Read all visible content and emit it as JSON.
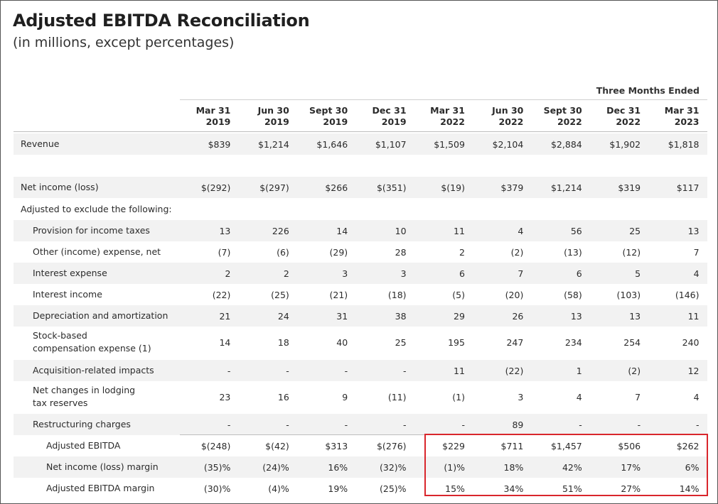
{
  "title": "Adjusted EBITDA Reconciliation",
  "subtitle": "(in millions, except percentages)",
  "period_label": "Three Months Ended",
  "columns": [
    {
      "month": "Mar 31",
      "year": "2019"
    },
    {
      "month": "Jun 30",
      "year": "2019"
    },
    {
      "month": "Sept 30",
      "year": "2019"
    },
    {
      "month": "Dec 31",
      "year": "2019"
    },
    {
      "month": "Mar 31",
      "year": "2022"
    },
    {
      "month": "Jun 30",
      "year": "2022"
    },
    {
      "month": "Sept 30",
      "year": "2022"
    },
    {
      "month": "Dec 31",
      "year": "2022"
    },
    {
      "month": "Mar 31",
      "year": "2023"
    }
  ],
  "rows": {
    "revenue": {
      "label": "Revenue",
      "values": [
        "$839",
        "$1,214",
        "$1,646",
        "$1,107",
        "$1,509",
        "$2,104",
        "$2,884",
        "$1,902",
        "$1,818"
      ]
    },
    "net_income": {
      "label": "Net income (loss)",
      "values": [
        "$(292)",
        "$(297)",
        "$266",
        "$(351)",
        "$(19)",
        "$379",
        "$1,214",
        "$319",
        "$117"
      ]
    },
    "adjusted_header": {
      "label": "Adjusted to exclude the following:"
    },
    "provision_taxes": {
      "label": "Provision for income taxes",
      "values": [
        "13",
        "226",
        "14",
        "10",
        "11",
        "4",
        "56",
        "25",
        "13"
      ]
    },
    "other_expense": {
      "label": "Other (income) expense, net",
      "values": [
        "(7)",
        "(6)",
        "(29)",
        "28",
        "2",
        "(2)",
        "(13)",
        "(12)",
        "7"
      ]
    },
    "interest_expense": {
      "label": "Interest expense",
      "values": [
        "2",
        "2",
        "3",
        "3",
        "6",
        "7",
        "6",
        "5",
        "4"
      ]
    },
    "interest_income": {
      "label": "Interest income",
      "values": [
        "(22)",
        "(25)",
        "(21)",
        "(18)",
        "(5)",
        "(20)",
        "(58)",
        "(103)",
        "(146)"
      ]
    },
    "depreciation": {
      "label": "Depreciation and amortization",
      "values": [
        "21",
        "24",
        "31",
        "38",
        "29",
        "26",
        "13",
        "13",
        "11"
      ]
    },
    "stock_comp": {
      "label_line1": "Stock-based",
      "label_line2": "compensation expense (1)",
      "values": [
        "14",
        "18",
        "40",
        "25",
        "195",
        "247",
        "234",
        "254",
        "240"
      ]
    },
    "acquisition": {
      "label": "Acquisition-related impacts",
      "values": [
        "-",
        "-",
        "-",
        "-",
        "11",
        "(22)",
        "1",
        "(2)",
        "12"
      ]
    },
    "lodging_tax": {
      "label_line1": "Net changes in lodging",
      "label_line2": "tax reserves",
      "values": [
        "23",
        "16",
        "9",
        "(11)",
        "(1)",
        "3",
        "4",
        "7",
        "4"
      ]
    },
    "restructuring": {
      "label": "Restructuring charges",
      "values": [
        "-",
        "-",
        "-",
        "-",
        "-",
        "89",
        "-",
        "-",
        "-"
      ]
    },
    "adjusted_ebitda": {
      "label": "Adjusted EBITDA",
      "values": [
        "$(248)",
        "$(42)",
        "$313",
        "$(276)",
        "$229",
        "$711",
        "$1,457",
        "$506",
        "$262"
      ]
    },
    "net_income_margin": {
      "label": "Net income (loss) margin",
      "values": [
        "(35)%",
        "(24)%",
        "16%",
        "(32)%",
        "(1)%",
        "18%",
        "42%",
        "17%",
        "6%"
      ]
    },
    "ebitda_margin": {
      "label": "Adjusted EBITDA margin",
      "values": [
        "(30)%",
        "(4)%",
        "19%",
        "(25)%",
        "15%",
        "34%",
        "51%",
        "27%",
        "14%"
      ]
    }
  },
  "colors": {
    "highlight_border": "#d9262c",
    "row_shade": "#f2f2f2"
  }
}
